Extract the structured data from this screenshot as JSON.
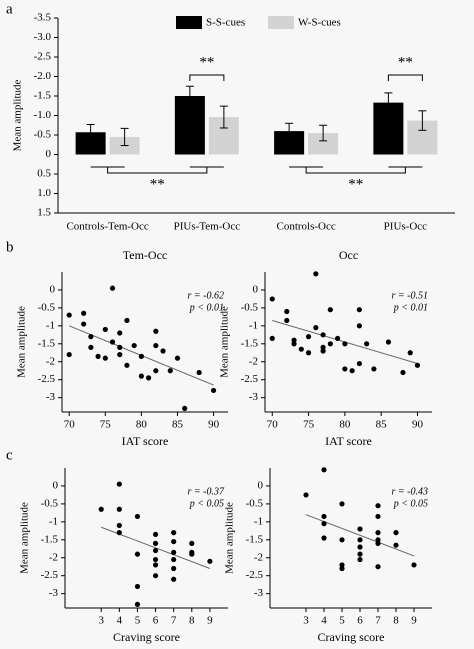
{
  "panel_labels": [
    "a",
    "b",
    "c"
  ],
  "chart_data": [
    {
      "type": "bar",
      "y_label": "Mean amplitude",
      "categories": [
        "Controls-Tem-Occ",
        "PIUs-Tem-Occ",
        "Controls-Occ",
        "PIUs-Occ"
      ],
      "series": [
        {
          "name": "S-S-cues",
          "color": "#000000",
          "values": [
            -0.57,
            -1.5,
            -0.6,
            -1.33
          ],
          "errors": [
            0.2,
            0.25,
            0.2,
            0.25
          ]
        },
        {
          "name": "W-S-cues",
          "color": "#d3d3d3",
          "values": [
            -0.45,
            -0.96,
            -0.55,
            -0.87
          ],
          "errors": [
            0.22,
            0.28,
            0.2,
            0.25
          ]
        }
      ],
      "ylim": [
        1.5,
        -3.5
      ],
      "yticks": [
        -3.5,
        {
          "value": -3,
          "label": "-3.0"
        },
        -2.5,
        {
          "value": -2,
          "label": "-2.0"
        },
        -1.5,
        {
          "value": -1,
          "label": "-1.0"
        },
        -0.5,
        0,
        0.5,
        {
          "value": 1,
          "label": "1.0"
        },
        1.5
      ],
      "annotations": [
        "**",
        "**",
        "**",
        "**"
      ]
    },
    {
      "type": "scatter",
      "title": "Tem-Occ",
      "x_label": "IAT score",
      "y_label": "Mean amplitude",
      "x": [
        70,
        70,
        72,
        72,
        73,
        73,
        74,
        75,
        75,
        76,
        76,
        77,
        77,
        77,
        78,
        78,
        79,
        80,
        80,
        81,
        82,
        82,
        82,
        83,
        84,
        85,
        86,
        88,
        90
      ],
      "y": [
        -0.7,
        -1.8,
        -0.65,
        -0.95,
        -1.3,
        -1.6,
        -1.85,
        -1.9,
        -1.1,
        0.05,
        -1.45,
        -1.2,
        -1.6,
        -1.8,
        -0.85,
        -2.1,
        -1.55,
        -1.85,
        -2.4,
        -2.45,
        -1.15,
        -1.55,
        -2.25,
        -1.7,
        -2.25,
        -1.9,
        -3.3,
        -2.3,
        -2.8
      ],
      "trend_line": {
        "x": [
          70,
          90
        ],
        "y": [
          -1.0,
          -2.65
        ]
      },
      "xlim": [
        69,
        92
      ],
      "xticks": [
        70,
        75,
        80,
        85,
        90
      ],
      "ylim": [
        -3.4,
        0.5
      ],
      "yticks": [
        0,
        -0.5,
        -1,
        -1.5,
        -2,
        -2.5,
        -3
      ],
      "annotations": [
        "r = -0.62",
        "p < 0.01"
      ]
    },
    {
      "type": "scatter",
      "title": "Occ",
      "x_label": "IAT score",
      "y_label": "Mean amplitude",
      "x": [
        70,
        70,
        72,
        72,
        73,
        73,
        74,
        75,
        75,
        76,
        76,
        77,
        77,
        77,
        78,
        78,
        79,
        80,
        80,
        81,
        82,
        82,
        82,
        83,
        84,
        86,
        88,
        89,
        90
      ],
      "y": [
        -0.25,
        -1.35,
        -0.6,
        -0.85,
        -1.4,
        -1.5,
        -1.65,
        -1.75,
        -1.3,
        0.45,
        -1.05,
        -1.25,
        -1.6,
        -1.7,
        -0.55,
        -1.5,
        -1.35,
        -1.5,
        -2.2,
        -2.25,
        -0.55,
        -1.0,
        -2.05,
        -1.5,
        -2.2,
        -1.45,
        -2.3,
        -1.75,
        -2.1
      ],
      "trend_line": {
        "x": [
          70,
          90
        ],
        "y": [
          -0.85,
          -2.05
        ]
      },
      "xlim": [
        69,
        92
      ],
      "xticks": [
        70,
        75,
        80,
        85,
        90
      ],
      "ylim": [
        -3.4,
        0.5
      ],
      "yticks": [
        0,
        -0.5,
        -1,
        -1.5,
        -2,
        -2.5,
        -3
      ],
      "annotations": [
        "r = -0.51",
        "p < 0.01"
      ]
    },
    {
      "type": "scatter",
      "x_label": "Craving score",
      "y_label": "Mean amplitude",
      "x": [
        3,
        4,
        4,
        4,
        4,
        5,
        5,
        5,
        5,
        6,
        6,
        6,
        6,
        6,
        6,
        7,
        7,
        7,
        7,
        7,
        7,
        8,
        8,
        8,
        9
      ],
      "y": [
        -0.65,
        0.05,
        -1.1,
        -1.3,
        -0.65,
        -0.85,
        -1.9,
        -2.8,
        -3.3,
        -1.35,
        -1.6,
        -1.8,
        -2.05,
        -2.2,
        -2.5,
        -1.3,
        -1.55,
        -1.85,
        -2.05,
        -2.3,
        -2.6,
        -1.6,
        -1.85,
        -1.9,
        -2.1
      ],
      "trend_line": {
        "x": [
          3,
          9
        ],
        "y": [
          -1.15,
          -2.3
        ]
      },
      "xlim": [
        1,
        10
      ],
      "xticks": [
        3,
        4,
        5,
        6,
        7,
        8,
        9
      ],
      "ylim": [
        -3.4,
        0.5
      ],
      "yticks": [
        0,
        -0.5,
        -1,
        -1.5,
        -2,
        -2.5,
        -3
      ],
      "annotations": [
        "r = -0.37",
        "p < 0.05"
      ]
    },
    {
      "type": "scatter",
      "x_label": "Craving score",
      "y_label": "Mean amplitude",
      "x": [
        3,
        4,
        4,
        4,
        4,
        5,
        5,
        5,
        5,
        6,
        6,
        6,
        6,
        6,
        7,
        7,
        7,
        7,
        7,
        7,
        8,
        8,
        9
      ],
      "y": [
        -0.25,
        0.45,
        -0.85,
        -1.05,
        -1.45,
        -0.5,
        -1.5,
        -2.2,
        -2.3,
        -1.2,
        -1.5,
        -1.7,
        -1.9,
        -2.05,
        -0.55,
        -0.85,
        -1.3,
        -1.5,
        -1.6,
        -2.25,
        -1.3,
        -1.65,
        -2.2
      ],
      "trend_line": {
        "x": [
          3,
          9
        ],
        "y": [
          -0.8,
          -1.95
        ]
      },
      "xlim": [
        1,
        10
      ],
      "xticks": [
        3,
        4,
        5,
        6,
        7,
        8,
        9
      ],
      "ylim": [
        -3.4,
        0.5
      ],
      "yticks": [
        0,
        -0.5,
        -1,
        -1.5,
        -2,
        -2.5,
        -3
      ],
      "annotations": [
        "r = -0.43",
        "p < 0.05"
      ]
    }
  ]
}
